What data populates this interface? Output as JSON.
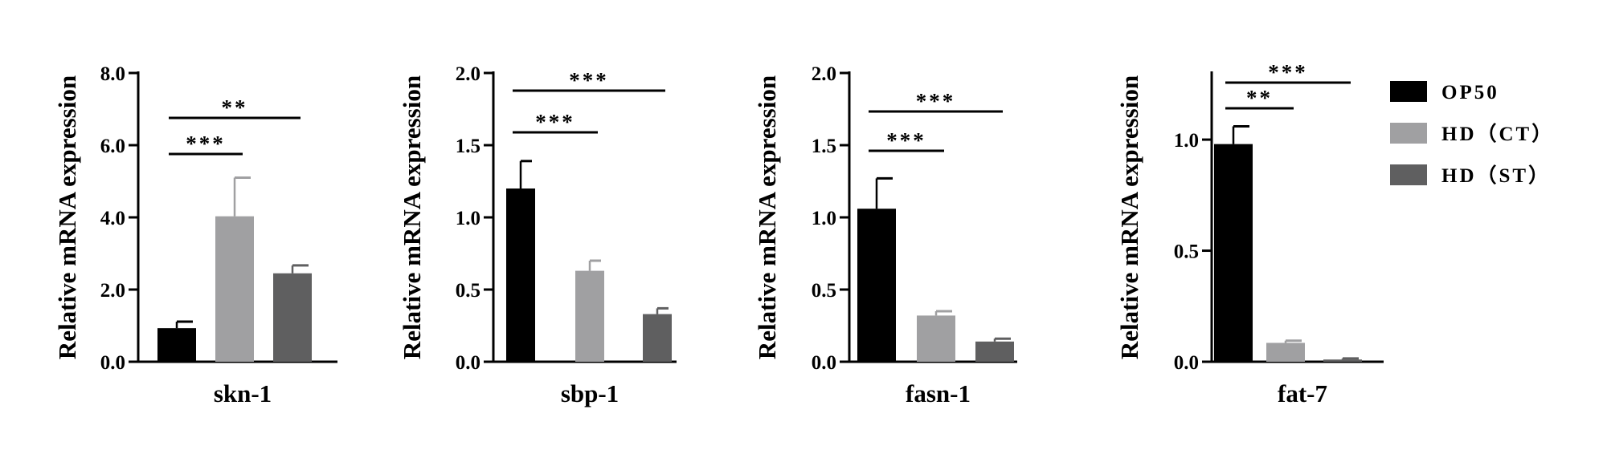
{
  "legend": {
    "entries": [
      {
        "label": "OP50",
        "color": "#000000"
      },
      {
        "label": "HD（CT）",
        "color": "#a0a0a2"
      },
      {
        "label": "HD（ST）",
        "color": "#5f5f60"
      }
    ]
  },
  "chart_data": [
    {
      "type": "bar",
      "title": "",
      "xlabel": "skn-1",
      "ylabel": "Relative mRNA expression",
      "ylim": [
        0,
        8
      ],
      "yticks": [
        0,
        2,
        4,
        6,
        8
      ],
      "ytick_labels": [
        "0.0",
        "2.0",
        "4.0",
        "6.0",
        "8.0"
      ],
      "categories": [
        "OP50",
        "HD（CT）",
        "HD（ST）"
      ],
      "series": [
        {
          "values": [
            0.93,
            4.03,
            2.45
          ],
          "errors": [
            0.18,
            1.07,
            0.22
          ]
        }
      ],
      "significance": [
        {
          "from": 0,
          "to": 1,
          "label": "***"
        },
        {
          "from": 0,
          "to": 2,
          "label": "**"
        }
      ]
    },
    {
      "type": "bar",
      "title": "",
      "xlabel": "sbp-1",
      "ylabel": "Relative mRNA expression",
      "ylim": [
        0,
        2
      ],
      "yticks": [
        0,
        0.5,
        1,
        1.5,
        2
      ],
      "ytick_labels": [
        "0.0",
        "0.5",
        "1.0",
        "1.5",
        "2.0"
      ],
      "categories": [
        "OP50",
        "HD（CT）",
        "HD（ST）"
      ],
      "series": [
        {
          "values": [
            1.2,
            0.63,
            0.33
          ],
          "errors": [
            0.19,
            0.07,
            0.04
          ]
        }
      ],
      "significance": [
        {
          "from": 0,
          "to": 1,
          "label": "***"
        },
        {
          "from": 0,
          "to": 2,
          "label": "***"
        }
      ]
    },
    {
      "type": "bar",
      "title": "",
      "xlabel": "fasn-1",
      "ylabel": "Relative mRNA expression",
      "ylim": [
        0,
        2
      ],
      "yticks": [
        0,
        0.5,
        1,
        1.5,
        2
      ],
      "ytick_labels": [
        "0.0",
        "0.5",
        "1.0",
        "1.5",
        "2.0"
      ],
      "categories": [
        "OP50",
        "HD（CT）",
        "HD（ST）"
      ],
      "series": [
        {
          "values": [
            1.06,
            0.32,
            0.14
          ],
          "errors": [
            0.21,
            0.03,
            0.02
          ]
        }
      ],
      "significance": [
        {
          "from": 0,
          "to": 1,
          "label": "***"
        },
        {
          "from": 0,
          "to": 2,
          "label": "***"
        }
      ]
    },
    {
      "type": "bar",
      "title": "",
      "xlabel": "fat-7",
      "ylabel": "Relative mRNA expression",
      "ylim": [
        0,
        1.3
      ],
      "yticks": [
        0,
        0.5,
        1
      ],
      "ytick_labels": [
        "0.0",
        "0.5",
        "1.0"
      ],
      "categories": [
        "OP50",
        "HD（CT）",
        "HD（ST）"
      ],
      "series": [
        {
          "values": [
            0.98,
            0.085,
            0.01
          ],
          "errors": [
            0.08,
            0.01,
            0.005
          ]
        }
      ],
      "significance": [
        {
          "from": 0,
          "to": 1,
          "label": "**"
        },
        {
          "from": 0,
          "to": 2,
          "label": "***"
        }
      ]
    }
  ]
}
